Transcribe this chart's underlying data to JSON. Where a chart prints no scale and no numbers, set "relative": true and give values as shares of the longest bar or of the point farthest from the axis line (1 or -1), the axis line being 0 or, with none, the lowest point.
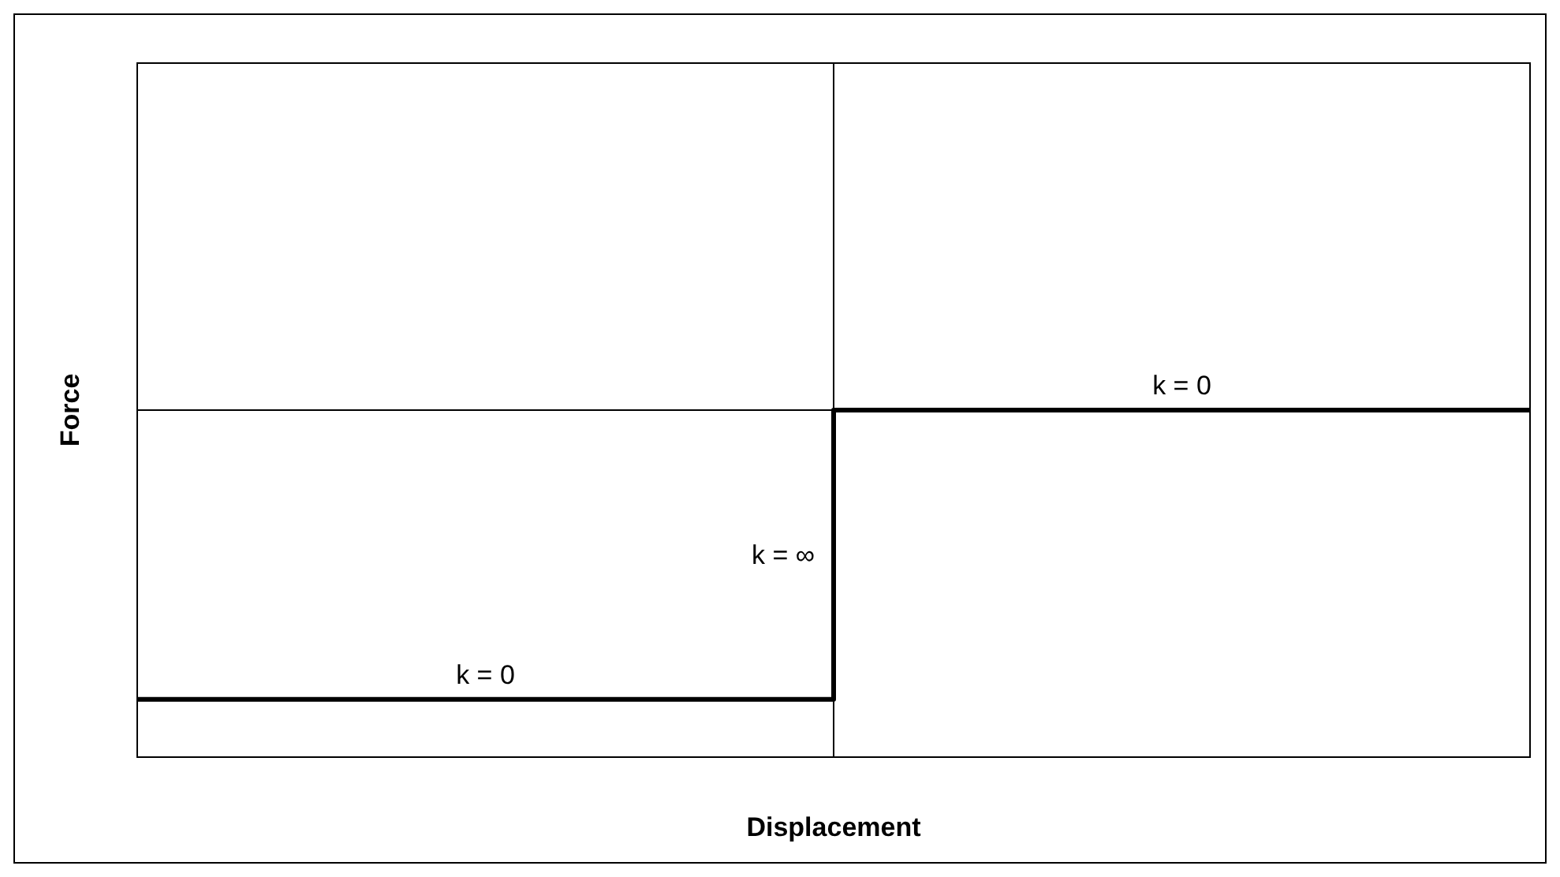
{
  "chart_data": {
    "type": "step",
    "relative": true,
    "xlabel": "Displacement",
    "ylabel": "Force",
    "categories": [
      null,
      null
    ],
    "series": [
      {
        "color": "#000000",
        "values": [
          -1,
          0
        ]
      }
    ],
    "annotations": [
      "k = 0",
      "k = ∞",
      "k = 0"
    ],
    "line_style": "solid"
  }
}
